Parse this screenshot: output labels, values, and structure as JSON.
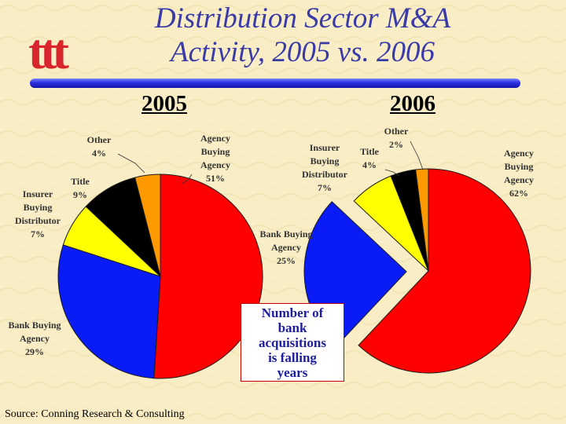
{
  "title_line1": "Distribution Sector M&A",
  "title_line2": "Activity, 2005 vs. 2006",
  "logo_text": "ttt",
  "callout": [
    "Number of",
    "bank",
    "acquisitions",
    "is falling",
    "years"
  ],
  "source": "Source: Conning Research & Consulting",
  "colors": {
    "background": "#f8edc4",
    "title": "#3a3aa8",
    "logo": "#d8262c",
    "rule": "#1a1ac8"
  },
  "chart_data": [
    {
      "type": "pie",
      "title": "2005",
      "slices": [
        {
          "label": [
            "Agency",
            "Buying",
            "Agency"
          ],
          "percent_text": "51%",
          "value": 51,
          "color": "#ff0000"
        },
        {
          "label": [
            "Bank Buying",
            "Agency"
          ],
          "percent_text": "29%",
          "value": 29,
          "color": "#0a1cf5"
        },
        {
          "label": [
            "Insurer",
            "Buying",
            "Distributor"
          ],
          "percent_text": "7%",
          "value": 7,
          "color": "#ffff00"
        },
        {
          "label": [
            "Title"
          ],
          "percent_text": "9%",
          "value": 9,
          "color": "#000000"
        },
        {
          "label": [
            "Other"
          ],
          "percent_text": "4%",
          "value": 4,
          "color": "#ff9900"
        }
      ]
    },
    {
      "type": "pie",
      "title": "2006",
      "slices": [
        {
          "label": [
            "Agency",
            "Buying",
            "Agency"
          ],
          "percent_text": "62%",
          "value": 62,
          "color": "#ff0000"
        },
        {
          "label": [
            "Bank Buying",
            "Agency"
          ],
          "percent_text": "25%",
          "value": 25,
          "color": "#0a1cf5"
        },
        {
          "label": [
            "Insurer",
            "Buying",
            "Distributor"
          ],
          "percent_text": "7%",
          "value": 7,
          "color": "#ffff00"
        },
        {
          "label": [
            "Title"
          ],
          "percent_text": "4%",
          "value": 4,
          "color": "#000000"
        },
        {
          "label": [
            "Other"
          ],
          "percent_text": "2%",
          "value": 2,
          "color": "#ff9900"
        }
      ]
    }
  ]
}
